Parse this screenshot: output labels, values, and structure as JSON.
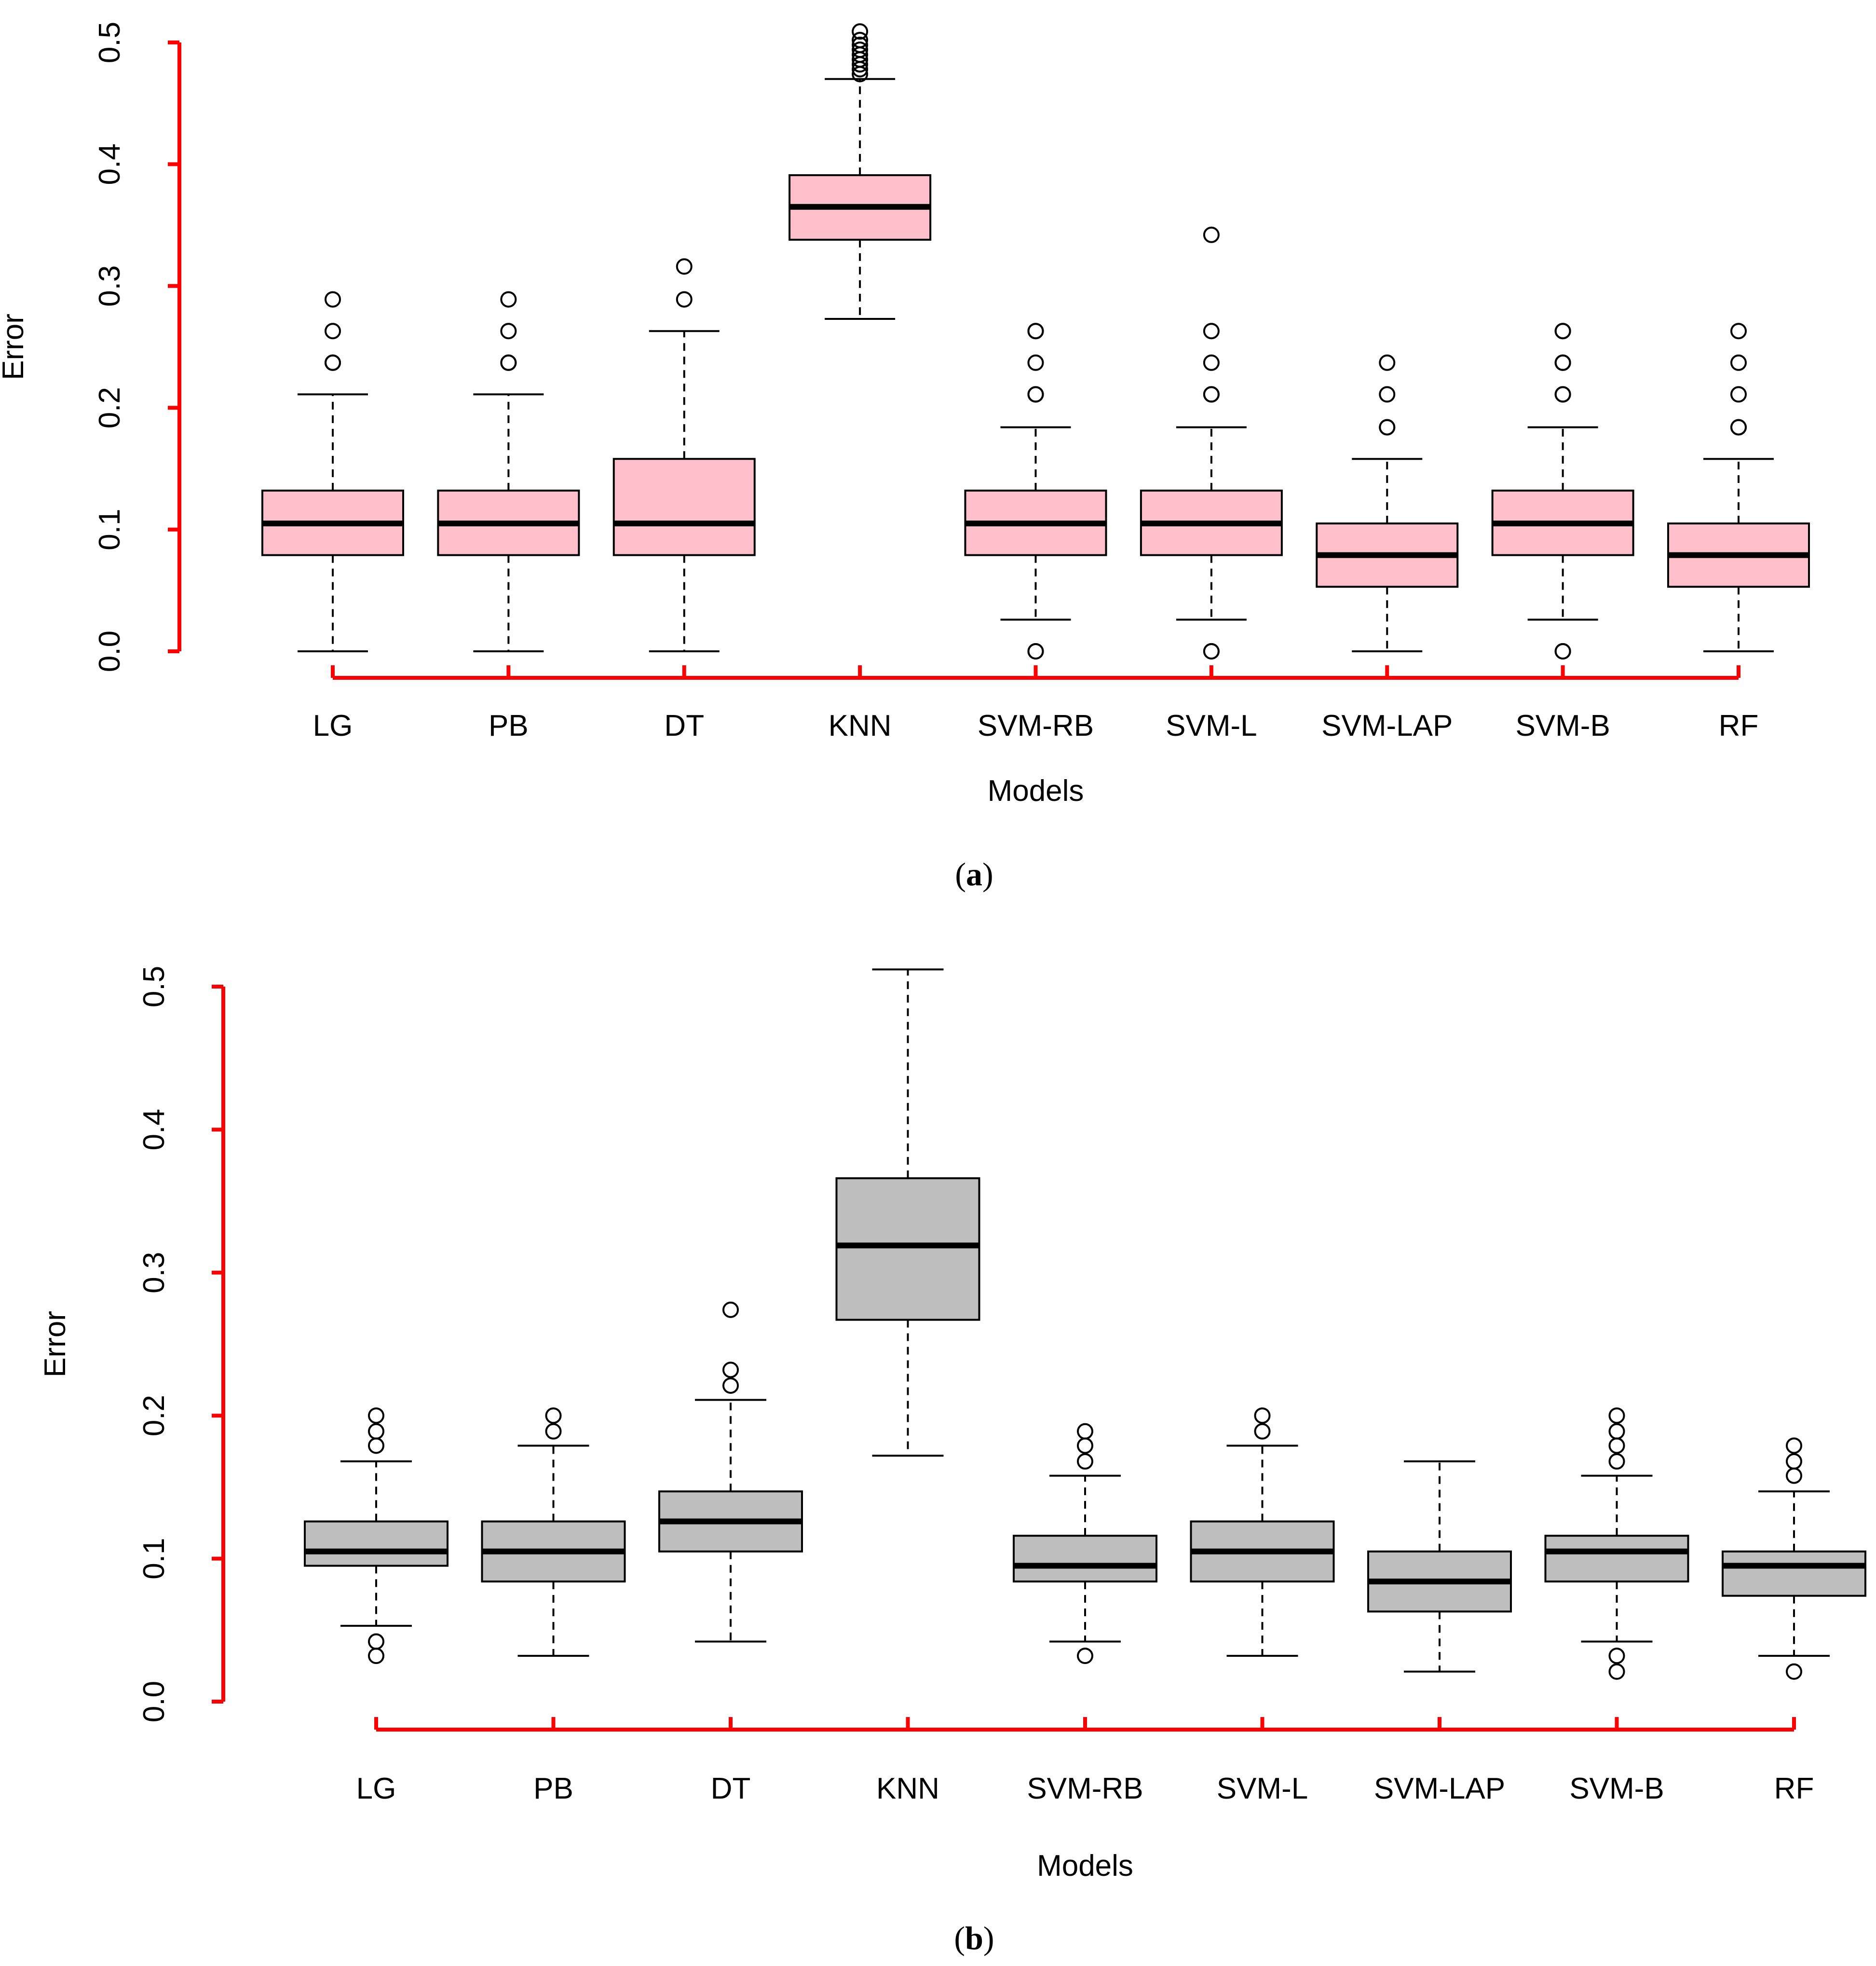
{
  "colors": {
    "axis": "#ff0000",
    "box_a": "#ffc0cb",
    "box_b": "#bebebe",
    "stroke": "#000000"
  },
  "captions": [
    "a",
    "b"
  ],
  "chart_data": [
    {
      "type": "boxplot",
      "panel": "a",
      "xlabel": "Models",
      "ylabel": "Error",
      "ylim": [
        0,
        0.5
      ],
      "yticks": [
        "0.0",
        "0.1",
        "0.2",
        "0.3",
        "0.4",
        "0.5"
      ],
      "ytick_values": [
        0,
        0.1,
        0.2,
        0.3,
        0.4,
        0.5
      ],
      "categories": [
        "LG",
        "PB",
        "DT",
        "KNN",
        "SVM-RB",
        "SVM-L",
        "SVM-LAP",
        "SVM-B",
        "RF"
      ],
      "fill": "#ffc0cb",
      "boxes": [
        {
          "whisker_low": 0.0,
          "q1": 0.079,
          "median": 0.105,
          "q3": 0.132,
          "whisker_high": 0.211,
          "outliers": [
            0.237,
            0.237,
            0.263,
            0.289
          ]
        },
        {
          "whisker_low": 0.0,
          "q1": 0.079,
          "median": 0.105,
          "q3": 0.132,
          "whisker_high": 0.211,
          "outliers": [
            0.237,
            0.237,
            0.263,
            0.289
          ]
        },
        {
          "whisker_low": 0.0,
          "q1": 0.079,
          "median": 0.105,
          "q3": 0.158,
          "whisker_high": 0.263,
          "outliers": [
            0.289,
            0.316
          ]
        },
        {
          "whisker_low": 0.273,
          "q1": 0.338,
          "median": 0.365,
          "q3": 0.391,
          "whisker_high": 0.47,
          "outliers": [
            0.474,
            0.478,
            0.482,
            0.486,
            0.49,
            0.494,
            0.498,
            0.502,
            0.509
          ]
        },
        {
          "whisker_low": 0.026,
          "q1": 0.079,
          "median": 0.105,
          "q3": 0.132,
          "whisker_high": 0.184,
          "outliers": [
            0.0,
            0.0,
            0.211,
            0.211,
            0.237,
            0.263,
            0.263
          ]
        },
        {
          "whisker_low": 0.026,
          "q1": 0.079,
          "median": 0.105,
          "q3": 0.132,
          "whisker_high": 0.184,
          "outliers": [
            0.0,
            0.0,
            0.211,
            0.211,
            0.237,
            0.263,
            0.342
          ]
        },
        {
          "whisker_low": 0.0,
          "q1": 0.053,
          "median": 0.079,
          "q3": 0.105,
          "whisker_high": 0.158,
          "outliers": [
            0.184,
            0.184,
            0.211,
            0.237
          ]
        },
        {
          "whisker_low": 0.026,
          "q1": 0.079,
          "median": 0.105,
          "q3": 0.132,
          "whisker_high": 0.184,
          "outliers": [
            0.0,
            0.0,
            0.211,
            0.211,
            0.237,
            0.237,
            0.263,
            0.263
          ]
        },
        {
          "whisker_low": 0.0,
          "q1": 0.053,
          "median": 0.079,
          "q3": 0.105,
          "whisker_high": 0.158,
          "outliers": [
            0.184,
            0.184,
            0.211,
            0.237,
            0.263
          ]
        }
      ]
    },
    {
      "type": "boxplot",
      "panel": "b",
      "xlabel": "Models",
      "ylabel": "Error",
      "ylim": [
        0,
        0.5
      ],
      "yticks": [
        "0.0",
        "0.1",
        "0.2",
        "0.3",
        "0.4",
        "0.5"
      ],
      "ytick_values": [
        0,
        0.1,
        0.2,
        0.3,
        0.4,
        0.5
      ],
      "categories": [
        "LG",
        "PB",
        "DT",
        "KNN",
        "SVM-RB",
        "SVM-L",
        "SVM-LAP",
        "SVM-B",
        "RF"
      ],
      "fill": "#bebebe",
      "boxes": [
        {
          "whisker_low": 0.053,
          "q1": 0.095,
          "median": 0.105,
          "q3": 0.126,
          "whisker_high": 0.168,
          "outliers": [
            0.032,
            0.042,
            0.179,
            0.189,
            0.2
          ]
        },
        {
          "whisker_low": 0.032,
          "q1": 0.084,
          "median": 0.105,
          "q3": 0.126,
          "whisker_high": 0.179,
          "outliers": [
            0.189,
            0.2
          ]
        },
        {
          "whisker_low": 0.042,
          "q1": 0.105,
          "median": 0.126,
          "q3": 0.147,
          "whisker_high": 0.211,
          "outliers": [
            0.221,
            0.232,
            0.274
          ]
        },
        {
          "whisker_low": 0.172,
          "q1": 0.267,
          "median": 0.319,
          "q3": 0.366,
          "whisker_high": 0.512,
          "outliers": []
        },
        {
          "whisker_low": 0.042,
          "q1": 0.084,
          "median": 0.095,
          "q3": 0.116,
          "whisker_high": 0.158,
          "outliers": [
            0.032,
            0.168,
            0.179,
            0.189
          ]
        },
        {
          "whisker_low": 0.032,
          "q1": 0.084,
          "median": 0.105,
          "q3": 0.126,
          "whisker_high": 0.179,
          "outliers": [
            0.189,
            0.2
          ]
        },
        {
          "whisker_low": 0.021,
          "q1": 0.063,
          "median": 0.084,
          "q3": 0.105,
          "whisker_high": 0.168,
          "outliers": []
        },
        {
          "whisker_low": 0.042,
          "q1": 0.084,
          "median": 0.105,
          "q3": 0.116,
          "whisker_high": 0.158,
          "outliers": [
            0.021,
            0.032,
            0.168,
            0.179,
            0.189,
            0.2
          ]
        },
        {
          "whisker_low": 0.032,
          "q1": 0.074,
          "median": 0.095,
          "q3": 0.105,
          "whisker_high": 0.147,
          "outliers": [
            0.021,
            0.158,
            0.168,
            0.179
          ]
        }
      ]
    }
  ]
}
